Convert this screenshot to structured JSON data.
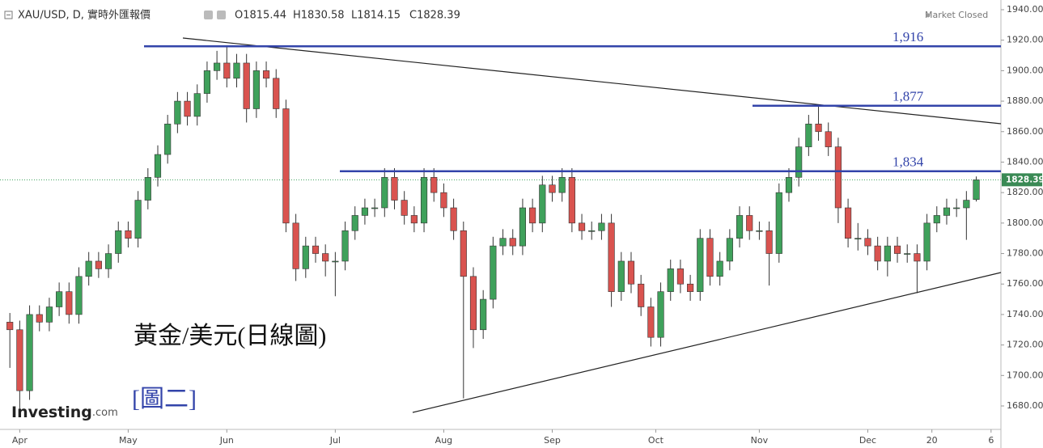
{
  "chart_data": {
    "type": "candlestick",
    "header": {
      "symbol": "XAU/USD, D, 實時外匯報價",
      "ohlc_labels": [
        "O1815.44",
        "H1830.58",
        "L1814.15",
        "C1828.39"
      ],
      "status": "Market Closed"
    },
    "annotations": {
      "title": "黃金/美元(日線圖)",
      "figure": "[圖二]",
      "brand": "Investing",
      "brand_suffix": ".com"
    },
    "levels": [
      {
        "value": 1916,
        "label": "1,916"
      },
      {
        "value": 1877,
        "label": "1,877"
      },
      {
        "value": 1834,
        "label": "1,834"
      }
    ],
    "up_color": "#3fa15b",
    "down_color": "#d9534f",
    "level_color": "#3344aa",
    "x": [
      -2,
      0,
      2,
      4,
      6,
      8,
      10,
      12,
      14,
      16,
      18,
      20,
      22,
      24,
      26,
      28,
      30,
      32,
      34,
      36,
      38,
      40,
      42,
      44,
      46,
      48,
      50,
      52,
      54,
      56,
      58,
      60,
      62,
      64,
      66,
      68,
      70,
      72,
      74,
      76,
      78,
      80,
      82,
      84,
      86,
      88,
      90,
      92,
      94,
      96,
      98,
      100,
      102,
      104,
      106,
      108,
      110,
      112,
      114,
      116,
      118,
      120,
      122,
      124,
      126,
      128,
      130,
      132,
      134,
      136,
      138,
      140,
      142,
      144,
      146,
      148,
      150,
      152,
      154,
      156,
      158,
      160,
      162,
      164,
      166,
      168,
      170,
      172,
      174,
      176,
      178,
      180,
      182,
      184,
      186,
      188,
      190,
      192,
      194
    ],
    "open": [
      1735,
      1730,
      1690,
      1740,
      1735,
      1745,
      1755,
      1740,
      1765,
      1775,
      1770,
      1780,
      1795,
      1790,
      1815,
      1830,
      1845,
      1865,
      1880,
      1870,
      1885,
      1900,
      1905,
      1895,
      1905,
      1875,
      1900,
      1895,
      1875,
      1800,
      1770,
      1785,
      1780,
      1775,
      1775,
      1795,
      1805,
      1810,
      1810,
      1830,
      1815,
      1805,
      1800,
      1830,
      1820,
      1810,
      1795,
      1765,
      1730,
      1750,
      1785,
      1790,
      1785,
      1810,
      1800,
      1825,
      1820,
      1830,
      1800,
      1795,
      1795,
      1800,
      1755,
      1775,
      1760,
      1745,
      1725,
      1755,
      1770,
      1760,
      1755,
      1790,
      1765,
      1775,
      1790,
      1805,
      1795,
      1795,
      1780,
      1820,
      1830,
      1850,
      1865,
      1860,
      1850,
      1810,
      1790,
      1790,
      1785,
      1775,
      1785,
      1780,
      1780,
      1775,
      1800,
      1805,
      1810,
      1810,
      1815.44
    ],
    "high": [
      1741,
      1736,
      1746,
      1746,
      1751,
      1761,
      1761,
      1771,
      1781,
      1781,
      1786,
      1801,
      1801,
      1821,
      1836,
      1851,
      1871,
      1886,
      1886,
      1891,
      1906,
      1913,
      1916,
      1911,
      1911,
      1906,
      1906,
      1901,
      1881,
      1806,
      1791,
      1791,
      1786,
      1781,
      1801,
      1811,
      1816,
      1816,
      1836,
      1836,
      1821,
      1811,
      1836,
      1836,
      1826,
      1816,
      1801,
      1771,
      1756,
      1791,
      1796,
      1796,
      1816,
      1816,
      1831,
      1831,
      1836,
      1836,
      1806,
      1801,
      1806,
      1806,
      1781,
      1781,
      1766,
      1751,
      1761,
      1776,
      1776,
      1766,
      1796,
      1796,
      1781,
      1796,
      1811,
      1811,
      1801,
      1801,
      1826,
      1836,
      1856,
      1871,
      1877,
      1866,
      1856,
      1816,
      1800,
      1796,
      1791,
      1791,
      1791,
      1786,
      1786,
      1806,
      1811,
      1816,
      1816,
      1821,
      1830.58
    ],
    "low": [
      1705,
      1678,
      1684,
      1729,
      1729,
      1739,
      1734,
      1734,
      1759,
      1764,
      1764,
      1774,
      1784,
      1784,
      1809,
      1824,
      1839,
      1859,
      1864,
      1864,
      1879,
      1894,
      1889,
      1889,
      1866,
      1869,
      1889,
      1869,
      1794,
      1762,
      1764,
      1774,
      1765,
      1752,
      1769,
      1789,
      1799,
      1804,
      1804,
      1809,
      1799,
      1794,
      1794,
      1814,
      1804,
      1789,
      1685,
      1718,
      1724,
      1744,
      1779,
      1779,
      1779,
      1794,
      1794,
      1814,
      1814,
      1794,
      1789,
      1789,
      1789,
      1745,
      1749,
      1754,
      1739,
      1719,
      1719,
      1749,
      1754,
      1749,
      1749,
      1759,
      1759,
      1769,
      1784,
      1789,
      1789,
      1759,
      1774,
      1814,
      1824,
      1844,
      1854,
      1844,
      1800,
      1784,
      1782,
      1779,
      1769,
      1765,
      1774,
      1774,
      1754,
      1769,
      1794,
      1799,
      1804,
      1789,
      1814.15
    ],
    "close": [
      1730,
      1690,
      1740,
      1735,
      1745,
      1755,
      1740,
      1765,
      1775,
      1770,
      1780,
      1795,
      1790,
      1815,
      1830,
      1845,
      1865,
      1880,
      1870,
      1885,
      1900,
      1905,
      1895,
      1905,
      1875,
      1900,
      1895,
      1875,
      1800,
      1770,
      1785,
      1780,
      1775,
      1775,
      1795,
      1805,
      1810,
      1810,
      1830,
      1815,
      1805,
      1800,
      1830,
      1820,
      1810,
      1795,
      1765,
      1730,
      1750,
      1785,
      1790,
      1785,
      1810,
      1800,
      1825,
      1820,
      1830,
      1800,
      1795,
      1795,
      1800,
      1755,
      1775,
      1760,
      1745,
      1725,
      1755,
      1770,
      1760,
      1755,
      1790,
      1765,
      1775,
      1790,
      1805,
      1795,
      1795,
      1780,
      1820,
      1830,
      1850,
      1865,
      1860,
      1850,
      1810,
      1790,
      1790,
      1785,
      1775,
      1785,
      1780,
      1780,
      1775,
      1800,
      1805,
      1810,
      1810,
      1815,
      1828.39
    ],
    "xlim": [
      -4,
      199
    ],
    "xticks": [
      {
        "value": 0,
        "label": "Apr"
      },
      {
        "value": 22,
        "label": "May"
      },
      {
        "value": 42,
        "label": "Jun"
      },
      {
        "value": 64,
        "label": "Jul"
      },
      {
        "value": 86,
        "label": "Aug"
      },
      {
        "value": 108,
        "label": "Sep"
      },
      {
        "value": 129,
        "label": "Oct"
      },
      {
        "value": 150,
        "label": "Nov"
      },
      {
        "value": 172,
        "label": "Dec"
      },
      {
        "value": 185,
        "label": "20"
      },
      {
        "value": 197,
        "label": "6"
      }
    ],
    "ylim": [
      1680,
      1940
    ],
    "yticks": [
      {
        "value": 1680,
        "label": "1680.00"
      },
      {
        "value": 1700,
        "label": "1700.00"
      },
      {
        "value": 1720,
        "label": "1720.00"
      },
      {
        "value": 1740,
        "label": "1740.00"
      },
      {
        "value": 1760,
        "label": "1760.00"
      },
      {
        "value": 1780,
        "label": "1780.00"
      },
      {
        "value": 1800,
        "label": "1800.00"
      },
      {
        "value": 1820,
        "label": "1820.00"
      },
      {
        "value": 1840,
        "label": "1840.00"
      },
      {
        "value": 1860,
        "label": "1860.00"
      },
      {
        "value": 1880,
        "label": "1880.00"
      },
      {
        "value": 1900,
        "label": "1900.00"
      },
      {
        "value": 1920,
        "label": "1920.00"
      },
      {
        "value": 1940,
        "label": "1940.00"
      }
    ]
  }
}
